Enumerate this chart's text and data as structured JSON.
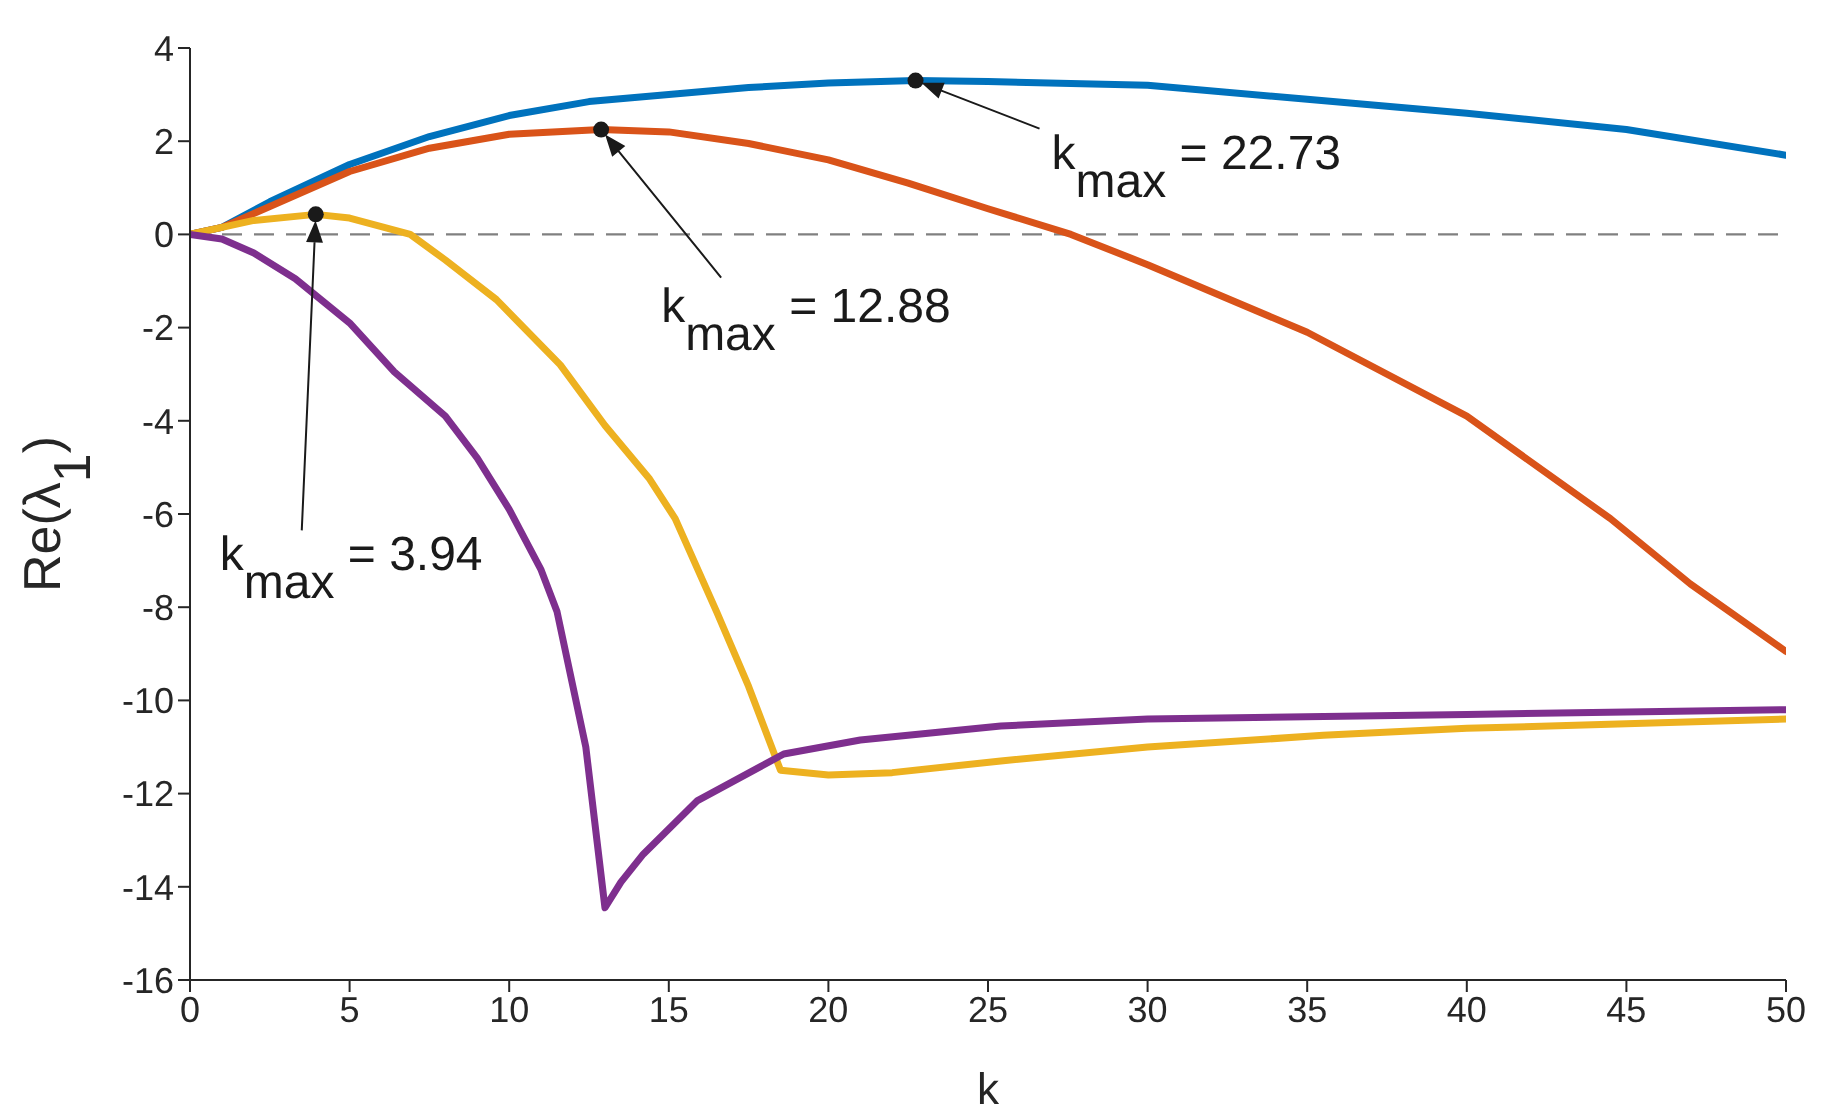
{
  "chart_data": {
    "type": "line",
    "xlabel": "k",
    "ylabel": "Re(λ$_{1}$)",
    "xlim": [
      0,
      50
    ],
    "xticks": [
      0,
      5,
      10,
      15,
      20,
      25,
      30,
      35,
      40,
      45,
      50
    ],
    "ylim": [
      -16,
      4
    ],
    "yticks": [
      -16,
      -14,
      -12,
      -10,
      -8,
      -6,
      -4,
      -2,
      0,
      2,
      4
    ],
    "grid": false,
    "marker": "none",
    "line_style": "solid",
    "series": [
      {
        "color": "#0072bd",
        "x": [
          0,
          1,
          2.5,
          5,
          7.5,
          10,
          12.5,
          15,
          17.5,
          20,
          22.73,
          25,
          30,
          35,
          40,
          45,
          50
        ],
        "values": [
          0,
          0.15,
          0.7,
          1.5,
          2.1,
          2.55,
          2.85,
          3.0,
          3.15,
          3.25,
          3.3,
          3.28,
          3.2,
          2.9,
          2.6,
          2.25,
          1.7
        ]
      },
      {
        "color": "#d95319",
        "x": [
          0,
          1,
          2.5,
          5,
          7.5,
          10,
          12.88,
          15,
          17.5,
          20,
          22.5,
          25,
          27.6,
          30,
          35,
          40,
          44.5,
          47,
          50
        ],
        "values": [
          0,
          0.15,
          0.6,
          1.35,
          1.85,
          2.15,
          2.25,
          2.2,
          1.95,
          1.6,
          1.1,
          0.55,
          0,
          -0.65,
          -2.1,
          -3.9,
          -6.1,
          -7.5,
          -8.95
        ]
      },
      {
        "color": "#edb120",
        "x": [
          0,
          1,
          2,
          3.94,
          5,
          6.9,
          8,
          9.6,
          11.6,
          13,
          14.4,
          15.2,
          16.5,
          17.5,
          18.5,
          20,
          22,
          25.4,
          30,
          35.5,
          40,
          45,
          50
        ],
        "values": [
          0,
          0.15,
          0.3,
          0.43,
          0.35,
          0,
          -0.55,
          -1.4,
          -2.8,
          -4.1,
          -5.25,
          -6.1,
          -8.1,
          -9.7,
          -11.5,
          -11.6,
          -11.55,
          -11.3,
          -11.0,
          -10.75,
          -10.6,
          -10.5,
          -10.4
        ]
      },
      {
        "type": "scatter",
        "color": "#1a1a1a",
        "marker": "circle",
        "x": [
          22.73,
          12.88,
          3.94
        ],
        "values": [
          3.3,
          2.25,
          0.43
        ]
      },
      {
        "color": "#7e2f8e",
        "x": [
          0,
          1,
          2,
          3.3,
          5,
          6.4,
          8,
          9,
          10,
          11,
          11.5,
          12.4,
          13,
          13.5,
          14.2,
          15.9,
          18.6,
          21,
          25.4,
          30,
          40,
          50
        ],
        "values": [
          0,
          -0.1,
          -0.4,
          -0.95,
          -1.9,
          -2.95,
          -3.9,
          -4.8,
          -5.9,
          -7.2,
          -8.1,
          -11.0,
          -14.45,
          -13.9,
          -13.3,
          -12.15,
          -11.15,
          -10.85,
          -10.55,
          -10.4,
          -10.3,
          -10.2
        ]
      }
    ],
    "ref_lines": [
      {
        "axis": "y",
        "value": 0,
        "color": "#808080",
        "line_style": "dashed"
      }
    ],
    "annotations": [
      "k$_{max}$ = 22.73",
      "k$_{max}$ = 12.88",
      "k$_{max}$ = 3.94"
    ]
  }
}
